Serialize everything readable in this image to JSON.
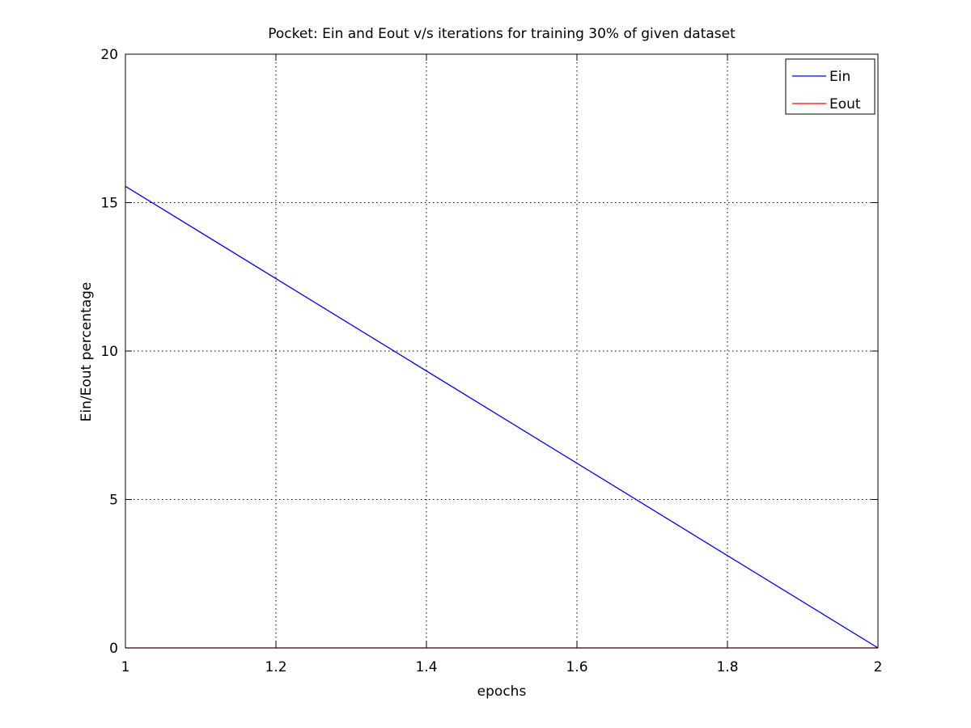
{
  "chart_data": {
    "type": "line",
    "title": "Pocket: Ein and Eout v/s iterations for training 30% of given dataset",
    "xlabel": "epochs",
    "ylabel": "Ein/Eout percentage",
    "xlim": [
      1,
      2
    ],
    "ylim": [
      0,
      20
    ],
    "xticks": [
      1,
      1.2,
      1.4,
      1.6,
      1.8,
      2
    ],
    "xtick_labels": [
      "1",
      "1.2",
      "1.4",
      "1.6",
      "1.8",
      "2"
    ],
    "yticks": [
      0,
      5,
      10,
      15,
      20
    ],
    "ytick_labels": [
      "0",
      "5",
      "10",
      "15",
      "20"
    ],
    "grid": true,
    "legend_position": "top-right",
    "series": [
      {
        "name": "Ein",
        "color": "#0000ff",
        "x": [
          1,
          2
        ],
        "y": [
          15.55,
          0
        ]
      },
      {
        "name": "Eout",
        "color": "#ff0000",
        "x": [
          1,
          2
        ],
        "y": [
          0,
          0
        ]
      }
    ]
  }
}
